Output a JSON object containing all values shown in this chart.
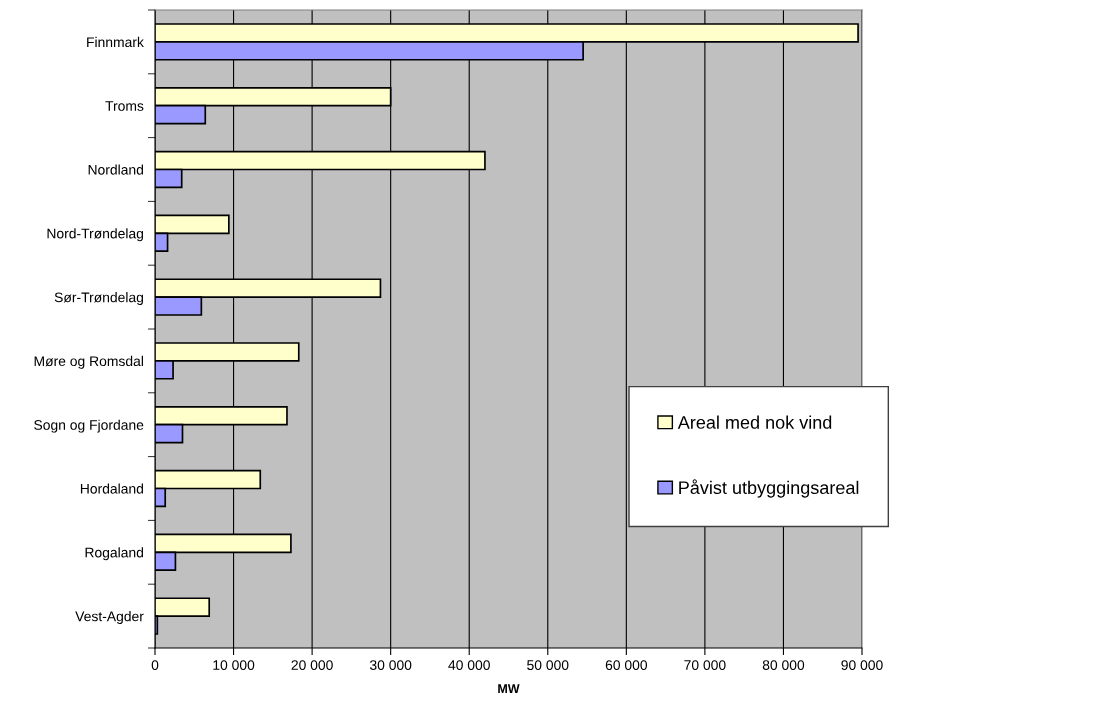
{
  "chart_data": {
    "type": "bar",
    "orientation": "horizontal",
    "xlabel": "MW",
    "categories": [
      "Finnmark",
      "Troms",
      "Nordland",
      "Nord-Trøndelag",
      "Sør-Trøndelag",
      "Møre og Romsdal",
      "Sogn og Fjordane",
      "Hordaland",
      "Rogaland",
      "Vest-Agder"
    ],
    "series": [
      {
        "name": "Areal med nok vind",
        "color": "#ffffcc",
        "values": [
          89500,
          30000,
          42000,
          9400,
          28700,
          18300,
          16800,
          13400,
          17300,
          6900
        ]
      },
      {
        "name": "Påvist utbyggingsareal",
        "color": "#9999ff",
        "values": [
          54500,
          6400,
          3400,
          1600,
          5900,
          2300,
          3500,
          1300,
          2600,
          300
        ]
      }
    ],
    "xlim": [
      0,
      90000
    ],
    "xticks": [
      0,
      {
        "value": 10000,
        "label": "10 000"
      },
      {
        "value": 20000,
        "label": "20 000"
      },
      {
        "value": 30000,
        "label": "30 000"
      },
      {
        "value": 40000,
        "label": "40 000"
      },
      {
        "value": 50000,
        "label": "50 000"
      },
      {
        "value": 60000,
        "label": "60 000"
      },
      {
        "value": 70000,
        "label": "70 000"
      },
      {
        "value": 80000,
        "label": "80 000"
      },
      {
        "value": 90000,
        "label": "90 000"
      }
    ],
    "grid": "x",
    "legend": "right"
  }
}
